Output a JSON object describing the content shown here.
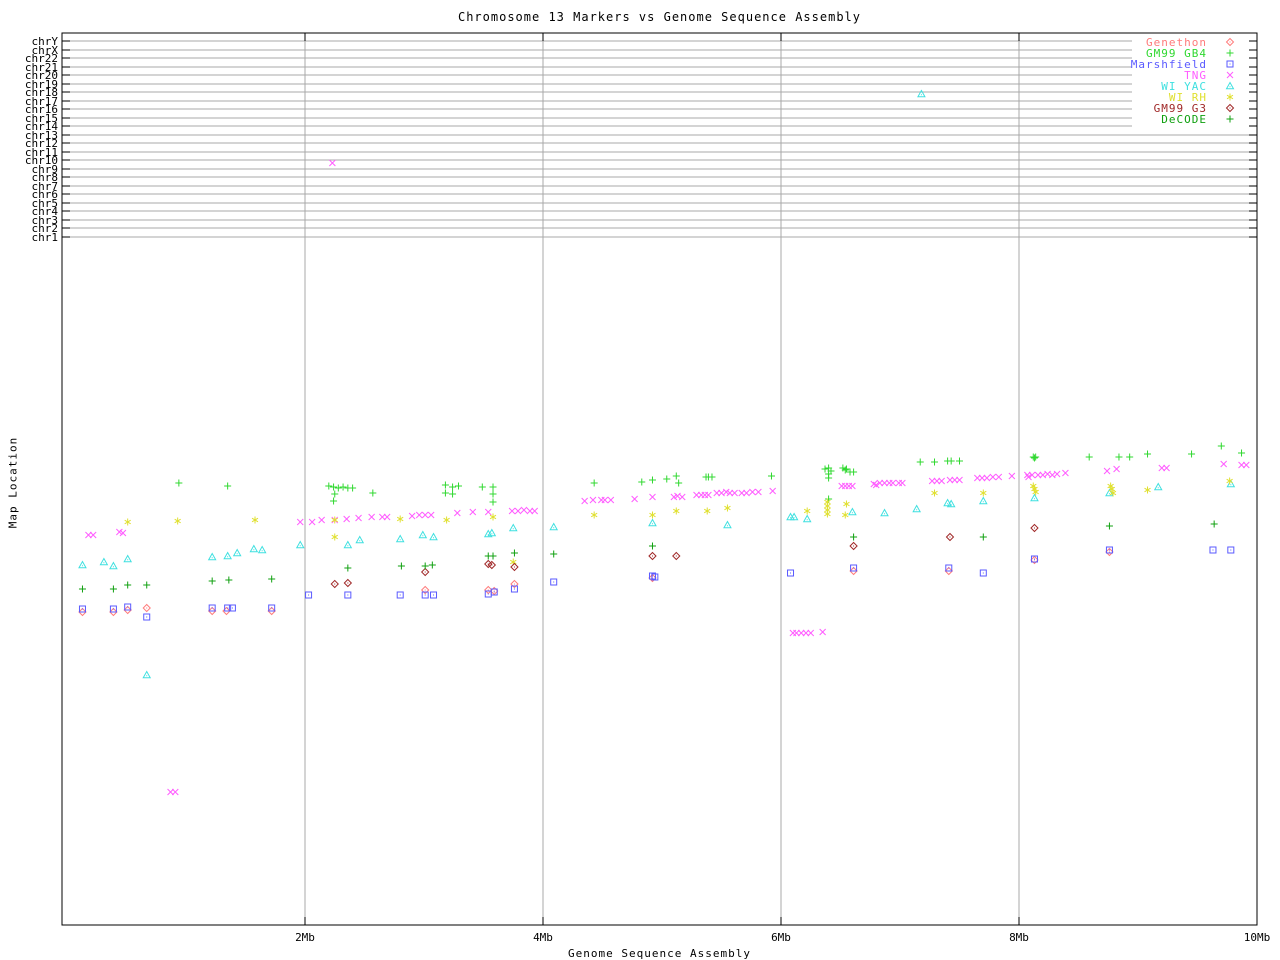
{
  "title": "Chromosome 13 Markers vs Genome Sequence Assembly",
  "x_axis": {
    "label": "Genome Sequence Assembly",
    "ticks": [
      {
        "label": "2Mb",
        "mb": 2
      },
      {
        "label": "4Mb",
        "mb": 4
      },
      {
        "label": "6Mb",
        "mb": 6
      },
      {
        "label": "8Mb",
        "mb": 8
      },
      {
        "label": "10Mb",
        "mb": 10
      }
    ]
  },
  "y_axis": {
    "label": "Map Location",
    "chromosome_rows": [
      "chrY",
      "chrX",
      "chr22",
      "chr21",
      "chr20",
      "chr19",
      "chr18",
      "chr17",
      "chr16",
      "chr15",
      "chr14",
      "chr13",
      "chr12",
      "chr11",
      "chr10",
      "chr9",
      "chr8",
      "chr7",
      "chr6",
      "chr5",
      "chr4",
      "chr3",
      "chr2",
      "chr1"
    ]
  },
  "chart_data": {
    "type": "scatter",
    "title": "Chromosome 13 Markers vs Genome Sequence Assembly",
    "xlabel": "Genome Sequence Assembly",
    "ylabel": "Map Location",
    "x_unit": "Mb",
    "xlim": [
      0,
      10
    ],
    "y_unit": "screen-px (Map Location axis has no numeric scale; top gridlines mark chromosomes chrY..chr1)",
    "grid": "on",
    "legend_position": "top-right",
    "series": [
      {
        "name": "Genethon",
        "symbol": "diamond",
        "color": "#ff7b7b",
        "points": [
          [
            0.13,
            612
          ],
          [
            0.39,
            612
          ],
          [
            0.51,
            610
          ],
          [
            0.67,
            608
          ],
          [
            1.22,
            611
          ],
          [
            1.34,
            611
          ],
          [
            1.72,
            611
          ],
          [
            3.01,
            590
          ],
          [
            3.54,
            590
          ],
          [
            3.59,
            591
          ],
          [
            3.76,
            584
          ],
          [
            4.92,
            578
          ],
          [
            6.61,
            571
          ],
          [
            7.41,
            571
          ],
          [
            8.13,
            560
          ],
          [
            8.76,
            552
          ]
        ]
      },
      {
        "name": "GM99 GB4",
        "symbol": "plus",
        "color": "#30d830",
        "points": [
          [
            0.94,
            483
          ],
          [
            1.35,
            486
          ],
          [
            2.2,
            486
          ],
          [
            2.24,
            487
          ],
          [
            2.28,
            488
          ],
          [
            2.32,
            487
          ],
          [
            2.36,
            488
          ],
          [
            2.4,
            488
          ],
          [
            2.25,
            494
          ],
          [
            2.24,
            501
          ],
          [
            2.57,
            493
          ],
          [
            3.18,
            485
          ],
          [
            3.24,
            487
          ],
          [
            3.29,
            486
          ],
          [
            3.18,
            493
          ],
          [
            3.24,
            494
          ],
          [
            3.49,
            487
          ],
          [
            3.58,
            487
          ],
          [
            3.58,
            494
          ],
          [
            3.58,
            502
          ],
          [
            4.43,
            483
          ],
          [
            4.83,
            482
          ],
          [
            4.92,
            480
          ],
          [
            5.04,
            479
          ],
          [
            5.12,
            476
          ],
          [
            5.14,
            483
          ],
          [
            5.37,
            477
          ],
          [
            5.39,
            477
          ],
          [
            5.42,
            477
          ],
          [
            5.92,
            476
          ],
          [
            6.37,
            469
          ],
          [
            6.4,
            468
          ],
          [
            6.42,
            471
          ],
          [
            6.4,
            474
          ],
          [
            6.4,
            478
          ],
          [
            6.4,
            499
          ],
          [
            6.52,
            468
          ],
          [
            6.54,
            470
          ],
          [
            6.55,
            469
          ],
          [
            6.58,
            472
          ],
          [
            6.61,
            472
          ],
          [
            7.17,
            462
          ],
          [
            7.29,
            462
          ],
          [
            7.4,
            461
          ],
          [
            7.43,
            461
          ],
          [
            7.5,
            461
          ],
          [
            8.12,
            457
          ],
          [
            8.14,
            457
          ],
          [
            8.13,
            458
          ],
          [
            8.59,
            457
          ],
          [
            8.84,
            457
          ],
          [
            8.93,
            457
          ],
          [
            9.08,
            454
          ],
          [
            9.45,
            454
          ],
          [
            9.7,
            446
          ],
          [
            9.87,
            453
          ]
        ]
      },
      {
        "name": "Marshfield",
        "symbol": "square",
        "color": "#5a5aff",
        "points": [
          [
            0.13,
            609
          ],
          [
            0.39,
            609
          ],
          [
            0.51,
            607
          ],
          [
            0.67,
            617
          ],
          [
            1.22,
            608
          ],
          [
            1.35,
            608
          ],
          [
            1.39,
            608
          ],
          [
            1.72,
            608
          ],
          [
            2.03,
            595
          ],
          [
            2.36,
            595
          ],
          [
            2.8,
            595
          ],
          [
            3.01,
            595
          ],
          [
            3.08,
            595
          ],
          [
            3.54,
            594
          ],
          [
            3.59,
            592
          ],
          [
            3.76,
            589
          ],
          [
            4.09,
            582
          ],
          [
            4.92,
            576
          ],
          [
            4.94,
            577
          ],
          [
            6.08,
            573
          ],
          [
            6.61,
            568
          ],
          [
            7.41,
            568
          ],
          [
            7.7,
            573
          ],
          [
            8.13,
            559
          ],
          [
            8.76,
            550
          ],
          [
            9.63,
            550
          ],
          [
            9.78,
            550
          ]
        ]
      },
      {
        "name": "TNG",
        "symbol": "cross",
        "color": "#ff5cff",
        "points": [
          [
            0.18,
            535
          ],
          [
            0.22,
            535
          ],
          [
            0.44,
            532
          ],
          [
            0.47,
            533
          ],
          [
            1.96,
            522
          ],
          [
            2.06,
            522
          ],
          [
            2.14,
            520
          ],
          [
            2.25,
            520
          ],
          [
            2.35,
            519
          ],
          [
            2.45,
            518
          ],
          [
            2.56,
            517
          ],
          [
            2.65,
            517
          ],
          [
            2.69,
            517
          ],
          [
            2.9,
            516
          ],
          [
            2.96,
            515
          ],
          [
            3.01,
            515
          ],
          [
            3.06,
            515
          ],
          [
            3.28,
            513
          ],
          [
            3.41,
            512
          ],
          [
            3.54,
            512
          ],
          [
            3.74,
            511
          ],
          [
            3.79,
            511
          ],
          [
            3.84,
            510
          ],
          [
            3.89,
            511
          ],
          [
            3.93,
            511
          ],
          [
            4.35,
            501
          ],
          [
            4.42,
            500
          ],
          [
            4.49,
            500
          ],
          [
            4.52,
            500
          ],
          [
            4.57,
            500
          ],
          [
            4.77,
            499
          ],
          [
            4.92,
            497
          ],
          [
            5.1,
            497
          ],
          [
            5.13,
            496
          ],
          [
            5.17,
            497
          ],
          [
            5.29,
            495
          ],
          [
            5.33,
            495
          ],
          [
            5.36,
            495
          ],
          [
            5.39,
            495
          ],
          [
            5.46,
            493
          ],
          [
            5.5,
            493
          ],
          [
            5.54,
            492
          ],
          [
            5.57,
            493
          ],
          [
            5.61,
            493
          ],
          [
            5.67,
            493
          ],
          [
            5.71,
            493
          ],
          [
            5.76,
            492
          ],
          [
            5.81,
            492
          ],
          [
            5.93,
            491
          ],
          [
            6.51,
            486
          ],
          [
            6.54,
            486
          ],
          [
            6.57,
            486
          ],
          [
            6.6,
            486
          ],
          [
            6.78,
            484
          ],
          [
            6.8,
            485
          ],
          [
            6.83,
            483
          ],
          [
            6.87,
            483
          ],
          [
            6.91,
            483
          ],
          [
            6.94,
            483
          ],
          [
            6.99,
            483
          ],
          [
            7.02,
            483
          ],
          [
            7.27,
            481
          ],
          [
            7.31,
            481
          ],
          [
            7.35,
            481
          ],
          [
            7.42,
            480
          ],
          [
            7.46,
            480
          ],
          [
            7.5,
            480
          ],
          [
            7.65,
            478
          ],
          [
            7.69,
            478
          ],
          [
            7.73,
            478
          ],
          [
            7.78,
            477
          ],
          [
            7.83,
            477
          ],
          [
            7.94,
            476
          ],
          [
            8.07,
            475
          ],
          [
            8.08,
            477
          ],
          [
            8.11,
            475
          ],
          [
            8.16,
            475
          ],
          [
            8.2,
            475
          ],
          [
            8.24,
            474
          ],
          [
            8.28,
            475
          ],
          [
            8.32,
            474
          ],
          [
            8.39,
            473
          ],
          [
            8.74,
            471
          ],
          [
            8.82,
            469
          ],
          [
            9.2,
            468
          ],
          [
            9.24,
            468
          ],
          [
            9.72,
            464
          ],
          [
            9.87,
            465
          ],
          [
            9.91,
            465
          ],
          [
            2.23,
            163
          ],
          [
            0.87,
            792
          ],
          [
            0.91,
            792
          ],
          [
            6.1,
            633
          ],
          [
            6.13,
            633
          ],
          [
            6.17,
            633
          ],
          [
            6.21,
            633
          ],
          [
            6.25,
            633
          ],
          [
            6.35,
            632
          ]
        ]
      },
      {
        "name": "WI YAC",
        "symbol": "triangle",
        "color": "#3fe0e0",
        "points": [
          [
            0.13,
            565
          ],
          [
            0.31,
            562
          ],
          [
            0.39,
            566
          ],
          [
            0.51,
            559
          ],
          [
            1.22,
            557
          ],
          [
            1.35,
            556
          ],
          [
            1.43,
            553
          ],
          [
            1.57,
            549
          ],
          [
            1.64,
            550
          ],
          [
            1.96,
            545
          ],
          [
            2.36,
            545
          ],
          [
            2.46,
            540
          ],
          [
            2.8,
            539
          ],
          [
            2.99,
            535
          ],
          [
            3.08,
            537
          ],
          [
            3.54,
            534
          ],
          [
            3.57,
            533
          ],
          [
            3.75,
            528
          ],
          [
            4.09,
            527
          ],
          [
            4.92,
            523
          ],
          [
            5.55,
            525
          ],
          [
            6.08,
            517
          ],
          [
            6.11,
            517
          ],
          [
            6.22,
            519
          ],
          [
            6.6,
            512
          ],
          [
            6.87,
            513
          ],
          [
            7.14,
            509
          ],
          [
            7.4,
            503
          ],
          [
            7.43,
            504
          ],
          [
            7.7,
            501
          ],
          [
            8.13,
            498
          ],
          [
            8.76,
            493
          ],
          [
            9.17,
            487
          ],
          [
            9.78,
            484
          ],
          [
            0.67,
            675
          ],
          [
            7.18,
            94
          ]
        ]
      },
      {
        "name": "WI RH",
        "symbol": "star",
        "color": "#e0e030",
        "points": [
          [
            0.51,
            522
          ],
          [
            0.93,
            521
          ],
          [
            1.58,
            520
          ],
          [
            2.25,
            520
          ],
          [
            2.25,
            537
          ],
          [
            2.8,
            519
          ],
          [
            3.19,
            520
          ],
          [
            3.58,
            517
          ],
          [
            3.75,
            562
          ],
          [
            4.43,
            515
          ],
          [
            4.92,
            515
          ],
          [
            5.12,
            511
          ],
          [
            5.38,
            511
          ],
          [
            5.55,
            508
          ],
          [
            6.22,
            511
          ],
          [
            6.39,
            502
          ],
          [
            6.39,
            506
          ],
          [
            6.39,
            510
          ],
          [
            6.39,
            514
          ],
          [
            6.54,
            515
          ],
          [
            6.55,
            504
          ],
          [
            7.29,
            493
          ],
          [
            7.7,
            493
          ],
          [
            8.12,
            486
          ],
          [
            8.13,
            489
          ],
          [
            8.14,
            492
          ],
          [
            8.77,
            486
          ],
          [
            8.78,
            489
          ],
          [
            8.79,
            493
          ],
          [
            9.08,
            490
          ],
          [
            9.77,
            481
          ]
        ]
      },
      {
        "name": "GM99 G3",
        "symbol": "diamond",
        "color": "#a02828",
        "points": [
          [
            2.25,
            584
          ],
          [
            2.36,
            583
          ],
          [
            3.01,
            572
          ],
          [
            3.54,
            564
          ],
          [
            3.57,
            565
          ],
          [
            3.76,
            567
          ],
          [
            4.92,
            556
          ],
          [
            5.12,
            556
          ],
          [
            6.61,
            546
          ],
          [
            7.42,
            537
          ],
          [
            8.13,
            528
          ]
        ]
      },
      {
        "name": "DeCODE",
        "symbol": "plus",
        "color": "#10a010",
        "points": [
          [
            0.13,
            589
          ],
          [
            0.39,
            589
          ],
          [
            0.51,
            585
          ],
          [
            0.67,
            585
          ],
          [
            1.22,
            581
          ],
          [
            1.36,
            580
          ],
          [
            1.72,
            579
          ],
          [
            2.36,
            568
          ],
          [
            2.81,
            566
          ],
          [
            3.01,
            566
          ],
          [
            3.07,
            565
          ],
          [
            3.54,
            556
          ],
          [
            3.58,
            556
          ],
          [
            3.76,
            553
          ],
          [
            4.09,
            554
          ],
          [
            4.92,
            546
          ],
          [
            6.61,
            537
          ],
          [
            7.7,
            537
          ],
          [
            8.76,
            526
          ],
          [
            9.64,
            524
          ]
        ]
      }
    ]
  }
}
